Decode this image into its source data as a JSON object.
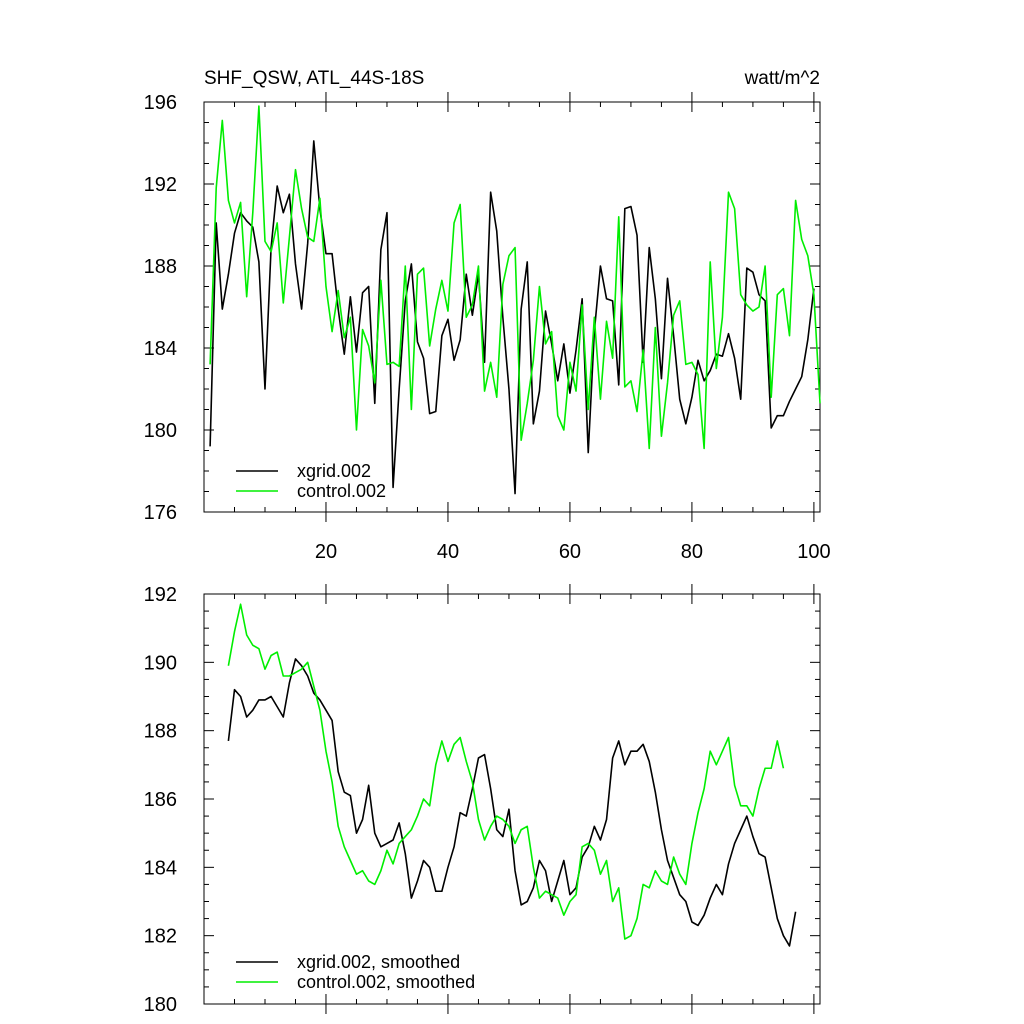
{
  "chart_data": [
    {
      "type": "line",
      "title": "SHF_QSW, ATL_44S-18S",
      "units": "watt/m^2",
      "xlim": [
        0,
        101
      ],
      "ylim": [
        176,
        196
      ],
      "yticks": [
        176,
        180,
        184,
        188,
        192,
        196
      ],
      "ytick_labels": [
        "176",
        "180",
        "184",
        "188",
        "192",
        "196"
      ],
      "xticks": [
        20,
        40,
        60,
        80,
        100
      ],
      "xtick_labels": [
        "20",
        "40",
        "60",
        "80",
        "100"
      ],
      "legend_position": "bottom-left",
      "series": [
        {
          "name": "xgrid.002",
          "color": "#000000",
          "x_start": 1,
          "values": [
            179.2,
            190.1,
            185.9,
            187.6,
            189.6,
            190.6,
            190.2,
            189.9,
            188.2,
            182.0,
            188.9,
            191.9,
            190.6,
            191.5,
            188.1,
            185.9,
            189.1,
            194.1,
            190.8,
            188.6,
            188.6,
            185.9,
            183.7,
            186.5,
            183.8,
            186.7,
            187.0,
            181.3,
            188.8,
            190.6,
            177.2,
            182.0,
            186.3,
            188.1,
            184.3,
            183.5,
            180.8,
            180.9,
            184.6,
            185.4,
            183.4,
            184.4,
            187.6,
            185.6,
            187.6,
            183.3,
            191.6,
            189.7,
            185.5,
            182.0,
            176.9,
            185.9,
            188.2,
            180.3,
            181.9,
            185.8,
            184.2,
            182.4,
            184.2,
            181.8,
            183.9,
            186.4,
            178.9,
            184.8,
            188.0,
            186.4,
            186.3,
            182.2,
            190.8,
            190.9,
            189.5,
            183.3,
            188.9,
            186.4,
            182.5,
            187.4,
            184.6,
            181.5,
            180.3,
            181.6,
            183.4,
            182.4,
            182.9,
            183.7,
            183.6,
            184.7,
            183.5,
            181.5,
            187.9,
            187.7,
            186.6,
            186.3,
            180.1,
            180.7,
            180.7,
            181.4,
            182.0,
            182.6,
            184.4,
            186.9
          ]
        },
        {
          "name": "control.002",
          "color": "#00ee00",
          "x_start": 1,
          "values": [
            183.2,
            191.8,
            195.1,
            191.2,
            190.1,
            191.1,
            186.5,
            190.6,
            195.8,
            189.2,
            188.7,
            190.1,
            186.2,
            189.4,
            192.7,
            190.8,
            189.4,
            189.2,
            191.3,
            187.0,
            184.8,
            186.8,
            184.5,
            185.5,
            180.0,
            184.9,
            184.1,
            182.3,
            187.3,
            183.2,
            183.3,
            183.1,
            188.0,
            181.0,
            187.6,
            187.9,
            184.1,
            185.9,
            187.3,
            185.8,
            190.1,
            191.0,
            185.5,
            186.1,
            188.0,
            181.9,
            183.3,
            181.6,
            187.1,
            188.5,
            188.9,
            179.5,
            181.3,
            183.4,
            187.0,
            184.2,
            184.8,
            180.7,
            180.0,
            183.3,
            181.9,
            186.1,
            181.0,
            185.5,
            181.5,
            185.3,
            183.5,
            190.4,
            182.1,
            182.4,
            180.9,
            183.9,
            179.1,
            185.0,
            179.7,
            182.3,
            185.6,
            186.3,
            183.2,
            183.3,
            182.7,
            179.1,
            188.2,
            183.0,
            185.5,
            191.6,
            190.8,
            186.6,
            186.1,
            185.8,
            186.0,
            188.0,
            181.6,
            186.6,
            186.9,
            184.6,
            191.2,
            189.3,
            188.5,
            186.6,
            181.3
          ]
        }
      ]
    },
    {
      "type": "line",
      "title": "",
      "xlim": [
        0,
        101
      ],
      "ylim": [
        180,
        192
      ],
      "yticks": [
        180,
        182,
        184,
        186,
        188,
        190,
        192
      ],
      "ytick_labels": [
        "180",
        "182",
        "184",
        "186",
        "188",
        "190",
        "192"
      ],
      "xticks": [
        20,
        40,
        60,
        80,
        100
      ],
      "xtick_labels": [],
      "legend_position": "bottom-left",
      "series": [
        {
          "name": "xgrid.002, smoothed",
          "color": "#000000",
          "x_start": 4,
          "values": [
            187.7,
            189.2,
            189.0,
            188.4,
            188.6,
            188.9,
            188.9,
            189.0,
            188.7,
            188.4,
            189.4,
            190.1,
            189.9,
            189.6,
            189.1,
            188.9,
            188.6,
            188.3,
            186.8,
            186.2,
            186.1,
            185.0,
            185.4,
            186.4,
            185.0,
            184.6,
            184.7,
            184.8,
            185.3,
            184.4,
            183.1,
            183.6,
            184.2,
            184.0,
            183.3,
            183.3,
            184.0,
            184.6,
            185.6,
            185.5,
            186.3,
            187.2,
            187.3,
            186.3,
            185.1,
            184.9,
            185.7,
            183.9,
            182.9,
            183.0,
            183.4,
            184.2,
            183.9,
            183.0,
            183.6,
            184.2,
            183.2,
            183.4,
            184.3,
            184.6,
            185.2,
            184.8,
            185.4,
            187.2,
            187.7,
            187.0,
            187.4,
            187.4,
            187.6,
            187.1,
            186.2,
            185.1,
            184.2,
            183.7,
            183.2,
            183.0,
            182.4,
            182.3,
            182.6,
            183.1,
            183.5,
            183.2,
            184.1,
            184.7,
            185.1,
            185.5,
            184.9,
            184.4,
            184.3,
            183.4,
            182.5,
            182.0,
            181.7,
            182.7
          ]
        },
        {
          "name": "control.002, smoothed",
          "color": "#00ee00",
          "x_start": 4,
          "values": [
            189.9,
            190.9,
            191.7,
            190.8,
            190.5,
            190.4,
            189.8,
            190.2,
            190.3,
            189.6,
            189.6,
            189.7,
            189.8,
            190.0,
            189.3,
            188.6,
            187.4,
            186.5,
            185.2,
            184.6,
            184.2,
            183.8,
            183.9,
            183.6,
            183.5,
            183.9,
            184.5,
            184.1,
            184.7,
            184.9,
            185.1,
            185.5,
            186.0,
            185.8,
            187.0,
            187.7,
            187.1,
            187.6,
            187.8,
            187.1,
            186.5,
            185.4,
            184.8,
            185.2,
            185.5,
            185.4,
            185.2,
            184.7,
            185.1,
            185.2,
            184.0,
            183.1,
            183.3,
            183.2,
            183.1,
            182.6,
            183.0,
            183.2,
            184.6,
            184.7,
            184.5,
            183.8,
            184.2,
            183.0,
            183.4,
            181.9,
            182.0,
            182.5,
            183.5,
            183.4,
            183.9,
            183.6,
            183.5,
            184.3,
            183.8,
            183.5,
            184.7,
            185.6,
            186.3,
            187.4,
            187.0,
            187.4,
            187.8,
            186.4,
            185.8,
            185.8,
            185.5,
            186.3,
            186.9,
            186.9,
            187.7,
            186.9
          ]
        }
      ]
    }
  ]
}
